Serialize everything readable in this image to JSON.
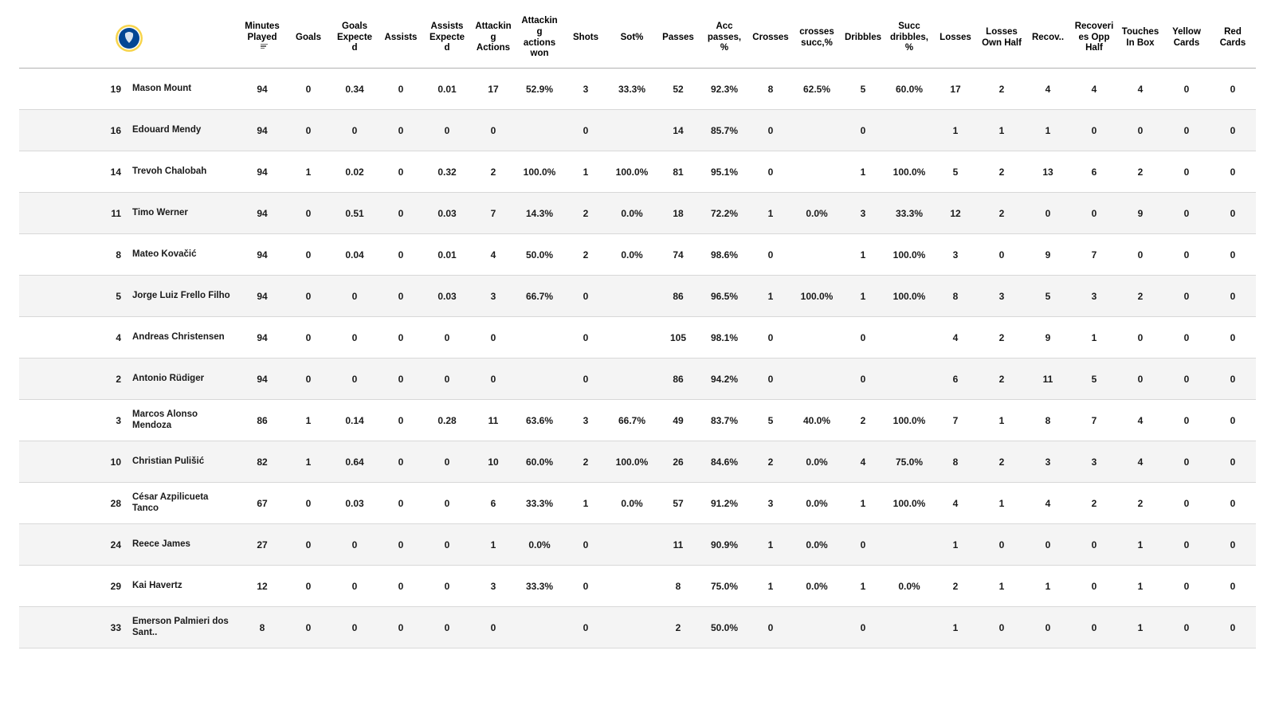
{
  "styling": {
    "row_bg_odd": "#ffffff",
    "row_bg_even": "#f4f4f4",
    "header_border_color": "#b0b0b0",
    "row_border_color": "#d8d8d8",
    "text_color": "#1a1a1a",
    "header_fontsize_pt": 11.5,
    "cell_fontsize_pt": 12,
    "font_weight": 700
  },
  "team_logo": {
    "name": "chelsea-crest",
    "outer_ring": "#f7d44c",
    "inner_fill": "#034694",
    "inner_ring": "#ffffff"
  },
  "sorted_column_index": 2,
  "columns": [
    {
      "key": "num",
      "label": ""
    },
    {
      "key": "name",
      "label": ""
    },
    {
      "key": "minutes",
      "label": "Minutes Played"
    },
    {
      "key": "goals",
      "label": "Goals"
    },
    {
      "key": "xg",
      "label": "Goals Expected"
    },
    {
      "key": "assists",
      "label": "Assists"
    },
    {
      "key": "xa",
      "label": "Assists Expected"
    },
    {
      "key": "att_act",
      "label": "Attacking Actions"
    },
    {
      "key": "att_won",
      "label": "Attacking actions won"
    },
    {
      "key": "shots",
      "label": "Shots"
    },
    {
      "key": "sot_pct",
      "label": "Sot%"
    },
    {
      "key": "passes",
      "label": "Passes"
    },
    {
      "key": "acc_pass",
      "label": "Acc passes, %"
    },
    {
      "key": "crosses",
      "label": "Crosses"
    },
    {
      "key": "cross_succ",
      "label": "crosses succ,%"
    },
    {
      "key": "dribbles",
      "label": "Dribbles"
    },
    {
      "key": "drib_succ",
      "label": "Succ dribbles,%"
    },
    {
      "key": "losses",
      "label": "Losses"
    },
    {
      "key": "loss_own",
      "label": "Losses Own Half"
    },
    {
      "key": "recov",
      "label": "Recov.."
    },
    {
      "key": "recov_opp",
      "label": "Recoveries Opp Half"
    },
    {
      "key": "touches_box",
      "label": "Touches In Box"
    },
    {
      "key": "yellow",
      "label": "Yellow Cards"
    },
    {
      "key": "red",
      "label": "Red Cards"
    }
  ],
  "rows": [
    {
      "num": "19",
      "name": "Mason Mount",
      "minutes": "94",
      "goals": "0",
      "xg": "0.34",
      "assists": "0",
      "xa": "0.01",
      "att_act": "17",
      "att_won": "52.9%",
      "shots": "3",
      "sot_pct": "33.3%",
      "passes": "52",
      "acc_pass": "92.3%",
      "crosses": "8",
      "cross_succ": "62.5%",
      "dribbles": "5",
      "drib_succ": "60.0%",
      "losses": "17",
      "loss_own": "2",
      "recov": "4",
      "recov_opp": "4",
      "touches_box": "4",
      "yellow": "0",
      "red": "0"
    },
    {
      "num": "16",
      "name": "Edouard Mendy",
      "minutes": "94",
      "goals": "0",
      "xg": "0",
      "assists": "0",
      "xa": "0",
      "att_act": "0",
      "att_won": "",
      "shots": "0",
      "sot_pct": "",
      "passes": "14",
      "acc_pass": "85.7%",
      "crosses": "0",
      "cross_succ": "",
      "dribbles": "0",
      "drib_succ": "",
      "losses": "1",
      "loss_own": "1",
      "recov": "1",
      "recov_opp": "0",
      "touches_box": "0",
      "yellow": "0",
      "red": "0"
    },
    {
      "num": "14",
      "name": "Trevoh Chalobah",
      "minutes": "94",
      "goals": "1",
      "xg": "0.02",
      "assists": "0",
      "xa": "0.32",
      "att_act": "2",
      "att_won": "100.0%",
      "shots": "1",
      "sot_pct": "100.0%",
      "passes": "81",
      "acc_pass": "95.1%",
      "crosses": "0",
      "cross_succ": "",
      "dribbles": "1",
      "drib_succ": "100.0%",
      "losses": "5",
      "loss_own": "2",
      "recov": "13",
      "recov_opp": "6",
      "touches_box": "2",
      "yellow": "0",
      "red": "0"
    },
    {
      "num": "11",
      "name": "Timo Werner",
      "minutes": "94",
      "goals": "0",
      "xg": "0.51",
      "assists": "0",
      "xa": "0.03",
      "att_act": "7",
      "att_won": "14.3%",
      "shots": "2",
      "sot_pct": "0.0%",
      "passes": "18",
      "acc_pass": "72.2%",
      "crosses": "1",
      "cross_succ": "0.0%",
      "dribbles": "3",
      "drib_succ": "33.3%",
      "losses": "12",
      "loss_own": "2",
      "recov": "0",
      "recov_opp": "0",
      "touches_box": "9",
      "yellow": "0",
      "red": "0"
    },
    {
      "num": "8",
      "name": "Mateo Kovačić",
      "minutes": "94",
      "goals": "0",
      "xg": "0.04",
      "assists": "0",
      "xa": "0.01",
      "att_act": "4",
      "att_won": "50.0%",
      "shots": "2",
      "sot_pct": "0.0%",
      "passes": "74",
      "acc_pass": "98.6%",
      "crosses": "0",
      "cross_succ": "",
      "dribbles": "1",
      "drib_succ": "100.0%",
      "losses": "3",
      "loss_own": "0",
      "recov": "9",
      "recov_opp": "7",
      "touches_box": "0",
      "yellow": "0",
      "red": "0"
    },
    {
      "num": "5",
      "name": "Jorge Luiz Frello Filho",
      "minutes": "94",
      "goals": "0",
      "xg": "0",
      "assists": "0",
      "xa": "0.03",
      "att_act": "3",
      "att_won": "66.7%",
      "shots": "0",
      "sot_pct": "",
      "passes": "86",
      "acc_pass": "96.5%",
      "crosses": "1",
      "cross_succ": "100.0%",
      "dribbles": "1",
      "drib_succ": "100.0%",
      "losses": "8",
      "loss_own": "3",
      "recov": "5",
      "recov_opp": "3",
      "touches_box": "2",
      "yellow": "0",
      "red": "0"
    },
    {
      "num": "4",
      "name": "Andreas Christensen",
      "minutes": "94",
      "goals": "0",
      "xg": "0",
      "assists": "0",
      "xa": "0",
      "att_act": "0",
      "att_won": "",
      "shots": "0",
      "sot_pct": "",
      "passes": "105",
      "acc_pass": "98.1%",
      "crosses": "0",
      "cross_succ": "",
      "dribbles": "0",
      "drib_succ": "",
      "losses": "4",
      "loss_own": "2",
      "recov": "9",
      "recov_opp": "1",
      "touches_box": "0",
      "yellow": "0",
      "red": "0"
    },
    {
      "num": "2",
      "name": "Antonio Rüdiger",
      "minutes": "94",
      "goals": "0",
      "xg": "0",
      "assists": "0",
      "xa": "0",
      "att_act": "0",
      "att_won": "",
      "shots": "0",
      "sot_pct": "",
      "passes": "86",
      "acc_pass": "94.2%",
      "crosses": "0",
      "cross_succ": "",
      "dribbles": "0",
      "drib_succ": "",
      "losses": "6",
      "loss_own": "2",
      "recov": "11",
      "recov_opp": "5",
      "touches_box": "0",
      "yellow": "0",
      "red": "0"
    },
    {
      "num": "3",
      "name": "Marcos Alonso Mendoza",
      "minutes": "86",
      "goals": "1",
      "xg": "0.14",
      "assists": "0",
      "xa": "0.28",
      "att_act": "11",
      "att_won": "63.6%",
      "shots": "3",
      "sot_pct": "66.7%",
      "passes": "49",
      "acc_pass": "83.7%",
      "crosses": "5",
      "cross_succ": "40.0%",
      "dribbles": "2",
      "drib_succ": "100.0%",
      "losses": "7",
      "loss_own": "1",
      "recov": "8",
      "recov_opp": "7",
      "touches_box": "4",
      "yellow": "0",
      "red": "0"
    },
    {
      "num": "10",
      "name": "Christian Pulišić",
      "minutes": "82",
      "goals": "1",
      "xg": "0.64",
      "assists": "0",
      "xa": "0",
      "att_act": "10",
      "att_won": "60.0%",
      "shots": "2",
      "sot_pct": "100.0%",
      "passes": "26",
      "acc_pass": "84.6%",
      "crosses": "2",
      "cross_succ": "0.0%",
      "dribbles": "4",
      "drib_succ": "75.0%",
      "losses": "8",
      "loss_own": "2",
      "recov": "3",
      "recov_opp": "3",
      "touches_box": "4",
      "yellow": "0",
      "red": "0"
    },
    {
      "num": "28",
      "name": "César Azpilicueta Tanco",
      "minutes": "67",
      "goals": "0",
      "xg": "0.03",
      "assists": "0",
      "xa": "0",
      "att_act": "6",
      "att_won": "33.3%",
      "shots": "1",
      "sot_pct": "0.0%",
      "passes": "57",
      "acc_pass": "91.2%",
      "crosses": "3",
      "cross_succ": "0.0%",
      "dribbles": "1",
      "drib_succ": "100.0%",
      "losses": "4",
      "loss_own": "1",
      "recov": "4",
      "recov_opp": "2",
      "touches_box": "2",
      "yellow": "0",
      "red": "0"
    },
    {
      "num": "24",
      "name": "Reece James",
      "minutes": "27",
      "goals": "0",
      "xg": "0",
      "assists": "0",
      "xa": "0",
      "att_act": "1",
      "att_won": "0.0%",
      "shots": "0",
      "sot_pct": "",
      "passes": "11",
      "acc_pass": "90.9%",
      "crosses": "1",
      "cross_succ": "0.0%",
      "dribbles": "0",
      "drib_succ": "",
      "losses": "1",
      "loss_own": "0",
      "recov": "0",
      "recov_opp": "0",
      "touches_box": "1",
      "yellow": "0",
      "red": "0"
    },
    {
      "num": "29",
      "name": "Kai Havertz",
      "minutes": "12",
      "goals": "0",
      "xg": "0",
      "assists": "0",
      "xa": "0",
      "att_act": "3",
      "att_won": "33.3%",
      "shots": "0",
      "sot_pct": "",
      "passes": "8",
      "acc_pass": "75.0%",
      "crosses": "1",
      "cross_succ": "0.0%",
      "dribbles": "1",
      "drib_succ": "0.0%",
      "losses": "2",
      "loss_own": "1",
      "recov": "1",
      "recov_opp": "0",
      "touches_box": "1",
      "yellow": "0",
      "red": "0"
    },
    {
      "num": "33",
      "name": "Emerson Palmieri dos Sant..",
      "minutes": "8",
      "goals": "0",
      "xg": "0",
      "assists": "0",
      "xa": "0",
      "att_act": "0",
      "att_won": "",
      "shots": "0",
      "sot_pct": "",
      "passes": "2",
      "acc_pass": "50.0%",
      "crosses": "0",
      "cross_succ": "",
      "dribbles": "0",
      "drib_succ": "",
      "losses": "1",
      "loss_own": "0",
      "recov": "0",
      "recov_opp": "0",
      "touches_box": "1",
      "yellow": "0",
      "red": "0"
    }
  ]
}
